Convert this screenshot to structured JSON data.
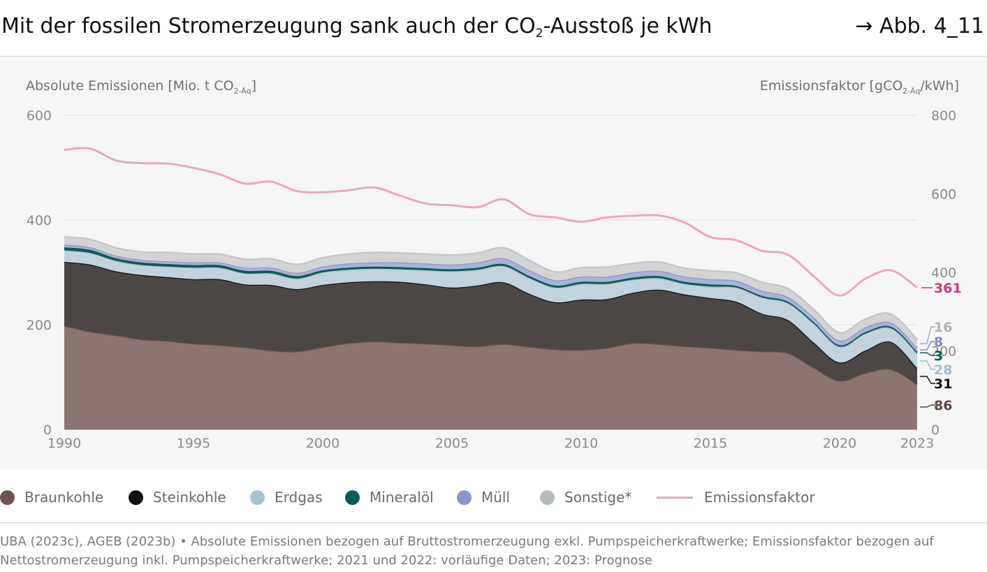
{
  "header": {
    "title_pre": "Mit der fossilen Stromerzeugung sank auch der CO",
    "title_sub": "2",
    "title_post": "-Ausstoß je kWh",
    "figure_ref": "→ Abb. 4_11"
  },
  "axis_titles": {
    "left_pre": "Absolute Emissionen [Mio. t CO",
    "left_sub": "2-Äq",
    "left_post": "]",
    "right_pre": "Emissionsfaktor [gCO",
    "right_sub": "2-Äq",
    "right_post": "/kWh]"
  },
  "legend": [
    {
      "label": "Braunkohle",
      "color": "#6e5450",
      "kind": "dot"
    },
    {
      "label": "Steinkohle",
      "color": "#111111",
      "kind": "dot"
    },
    {
      "label": "Erdgas",
      "color": "#a6c4d4",
      "kind": "dot"
    },
    {
      "label": "Mineralöl",
      "color": "#0d5a55",
      "kind": "dot"
    },
    {
      "label": "Müll",
      "color": "#8c96c8",
      "kind": "dot"
    },
    {
      "label": "Sonstige*",
      "color": "#b6bbbf",
      "kind": "dot"
    },
    {
      "label": "Emissionsfaktor",
      "color": "#eda3c7",
      "kind": "line"
    }
  ],
  "footer": {
    "text": "UBA (2023c), AGEB (2023b) • Absolute Emissionen bezogen auf Bruttostromerzeugung exkl. Pumpspeicherkraftwerke; Emissionsfaktor bezogen auf Nettostromerzeugung inkl. Pumpspeicherkraftwerke; 2021 und 2022: vorläufige Daten; 2023: Prognose"
  },
  "chart_data": {
    "type": "area",
    "stacked": true,
    "x": [
      1990,
      1991,
      1992,
      1993,
      1994,
      1995,
      1996,
      1997,
      1998,
      1999,
      2000,
      2001,
      2002,
      2003,
      2004,
      2005,
      2006,
      2007,
      2008,
      2009,
      2010,
      2011,
      2012,
      2013,
      2014,
      2015,
      2016,
      2017,
      2018,
      2019,
      2020,
      2021,
      2022,
      2023
    ],
    "xticks": [
      "1990",
      "1995",
      "2000",
      "2005",
      "2010",
      "2015",
      "2020",
      "2023"
    ],
    "xlim": [
      1990,
      2023
    ],
    "ylim_left": [
      0,
      600
    ],
    "yticks_left": [
      "0",
      "200",
      "400",
      "600"
    ],
    "ylim_right": [
      0,
      800
    ],
    "yticks_right": [
      "0",
      "200",
      "400",
      "600",
      "800"
    ],
    "grid": true,
    "legend_position": "bottom",
    "series": [
      {
        "name": "Braunkohle",
        "color": "#8c7570",
        "line_color": "#6e5450",
        "values": [
          198,
          187,
          180,
          172,
          169,
          164,
          161,
          157,
          151,
          149,
          157,
          165,
          168,
          166,
          164,
          161,
          159,
          163,
          158,
          153,
          152,
          156,
          165,
          163,
          159,
          156,
          152,
          149,
          146,
          118,
          93,
          108,
          115,
          86
        ],
        "end_label": "86",
        "end_label_color": "#5c4542"
      },
      {
        "name": "Steinkohle",
        "color": "#4c4645",
        "line_color": "#111111",
        "values": [
          122,
          128,
          122,
          123,
          122,
          123,
          126,
          120,
          125,
          119,
          119,
          116,
          115,
          116,
          113,
          110,
          116,
          118,
          101,
          90,
          96,
          93,
          96,
          104,
          99,
          95,
          92,
          72,
          63,
          48,
          35,
          43,
          52,
          31
        ],
        "end_label": "31",
        "end_label_color": "#111111"
      },
      {
        "name": "Erdgas",
        "color": "#c2d3dd",
        "line_color": "#a6c4d4",
        "values": [
          22,
          22,
          20,
          19,
          20,
          22,
          22,
          21,
          22,
          20,
          24,
          24,
          24,
          24,
          27,
          31,
          30,
          31,
          30,
          28,
          30,
          29,
          25,
          22,
          20,
          22,
          27,
          31,
          32,
          36,
          30,
          32,
          26,
          28
        ],
        "end_label": "28",
        "end_label_color": "#9fbdcc"
      },
      {
        "name": "Mineralöl",
        "color": "#0d5a55",
        "line_color": "#0d5a55",
        "values": [
          6,
          6,
          5,
          5,
          5,
          5,
          5,
          5,
          5,
          5,
          4,
          4,
          4,
          4,
          4,
          4,
          4,
          4,
          4,
          4,
          4,
          4,
          4,
          4,
          4,
          4,
          3,
          3,
          3,
          3,
          3,
          3,
          3,
          3
        ],
        "end_label": "3",
        "end_label_color": "#0d5a55"
      },
      {
        "name": "Müll",
        "color": "#aab3d6",
        "line_color": "#8c96c8",
        "values": [
          5,
          5,
          5,
          5,
          5,
          5,
          5,
          6,
          6,
          6,
          7,
          8,
          8,
          9,
          9,
          9,
          10,
          11,
          11,
          10,
          10,
          10,
          10,
          10,
          10,
          10,
          10,
          10,
          9,
          9,
          9,
          9,
          8,
          8
        ],
        "end_label": "8",
        "end_label_color": "#7f89bd"
      },
      {
        "name": "Sonstige*",
        "color": "#d2d4d6",
        "line_color": "#c4c7ca",
        "values": [
          15,
          15,
          15,
          15,
          17,
          16,
          16,
          16,
          17,
          16,
          17,
          18,
          19,
          18,
          18,
          18,
          18,
          20,
          19,
          16,
          17,
          18,
          17,
          17,
          16,
          16,
          15,
          16,
          16,
          15,
          15,
          16,
          16,
          16
        ],
        "end_label": "16",
        "end_label_color": "#aab0b6"
      }
    ],
    "line_series": {
      "name": "Emissionsfaktor",
      "axis": "right",
      "color": "#eda3c7",
      "values": [
        712,
        715,
        685,
        678,
        677,
        666,
        650,
        626,
        631,
        607,
        604,
        609,
        616,
        595,
        575,
        571,
        566,
        586,
        548,
        540,
        529,
        540,
        544,
        545,
        527,
        490,
        482,
        455,
        445,
        390,
        341,
        384,
        405,
        361
      ],
      "end_label": "361",
      "end_label_color": "#d4367f"
    }
  }
}
